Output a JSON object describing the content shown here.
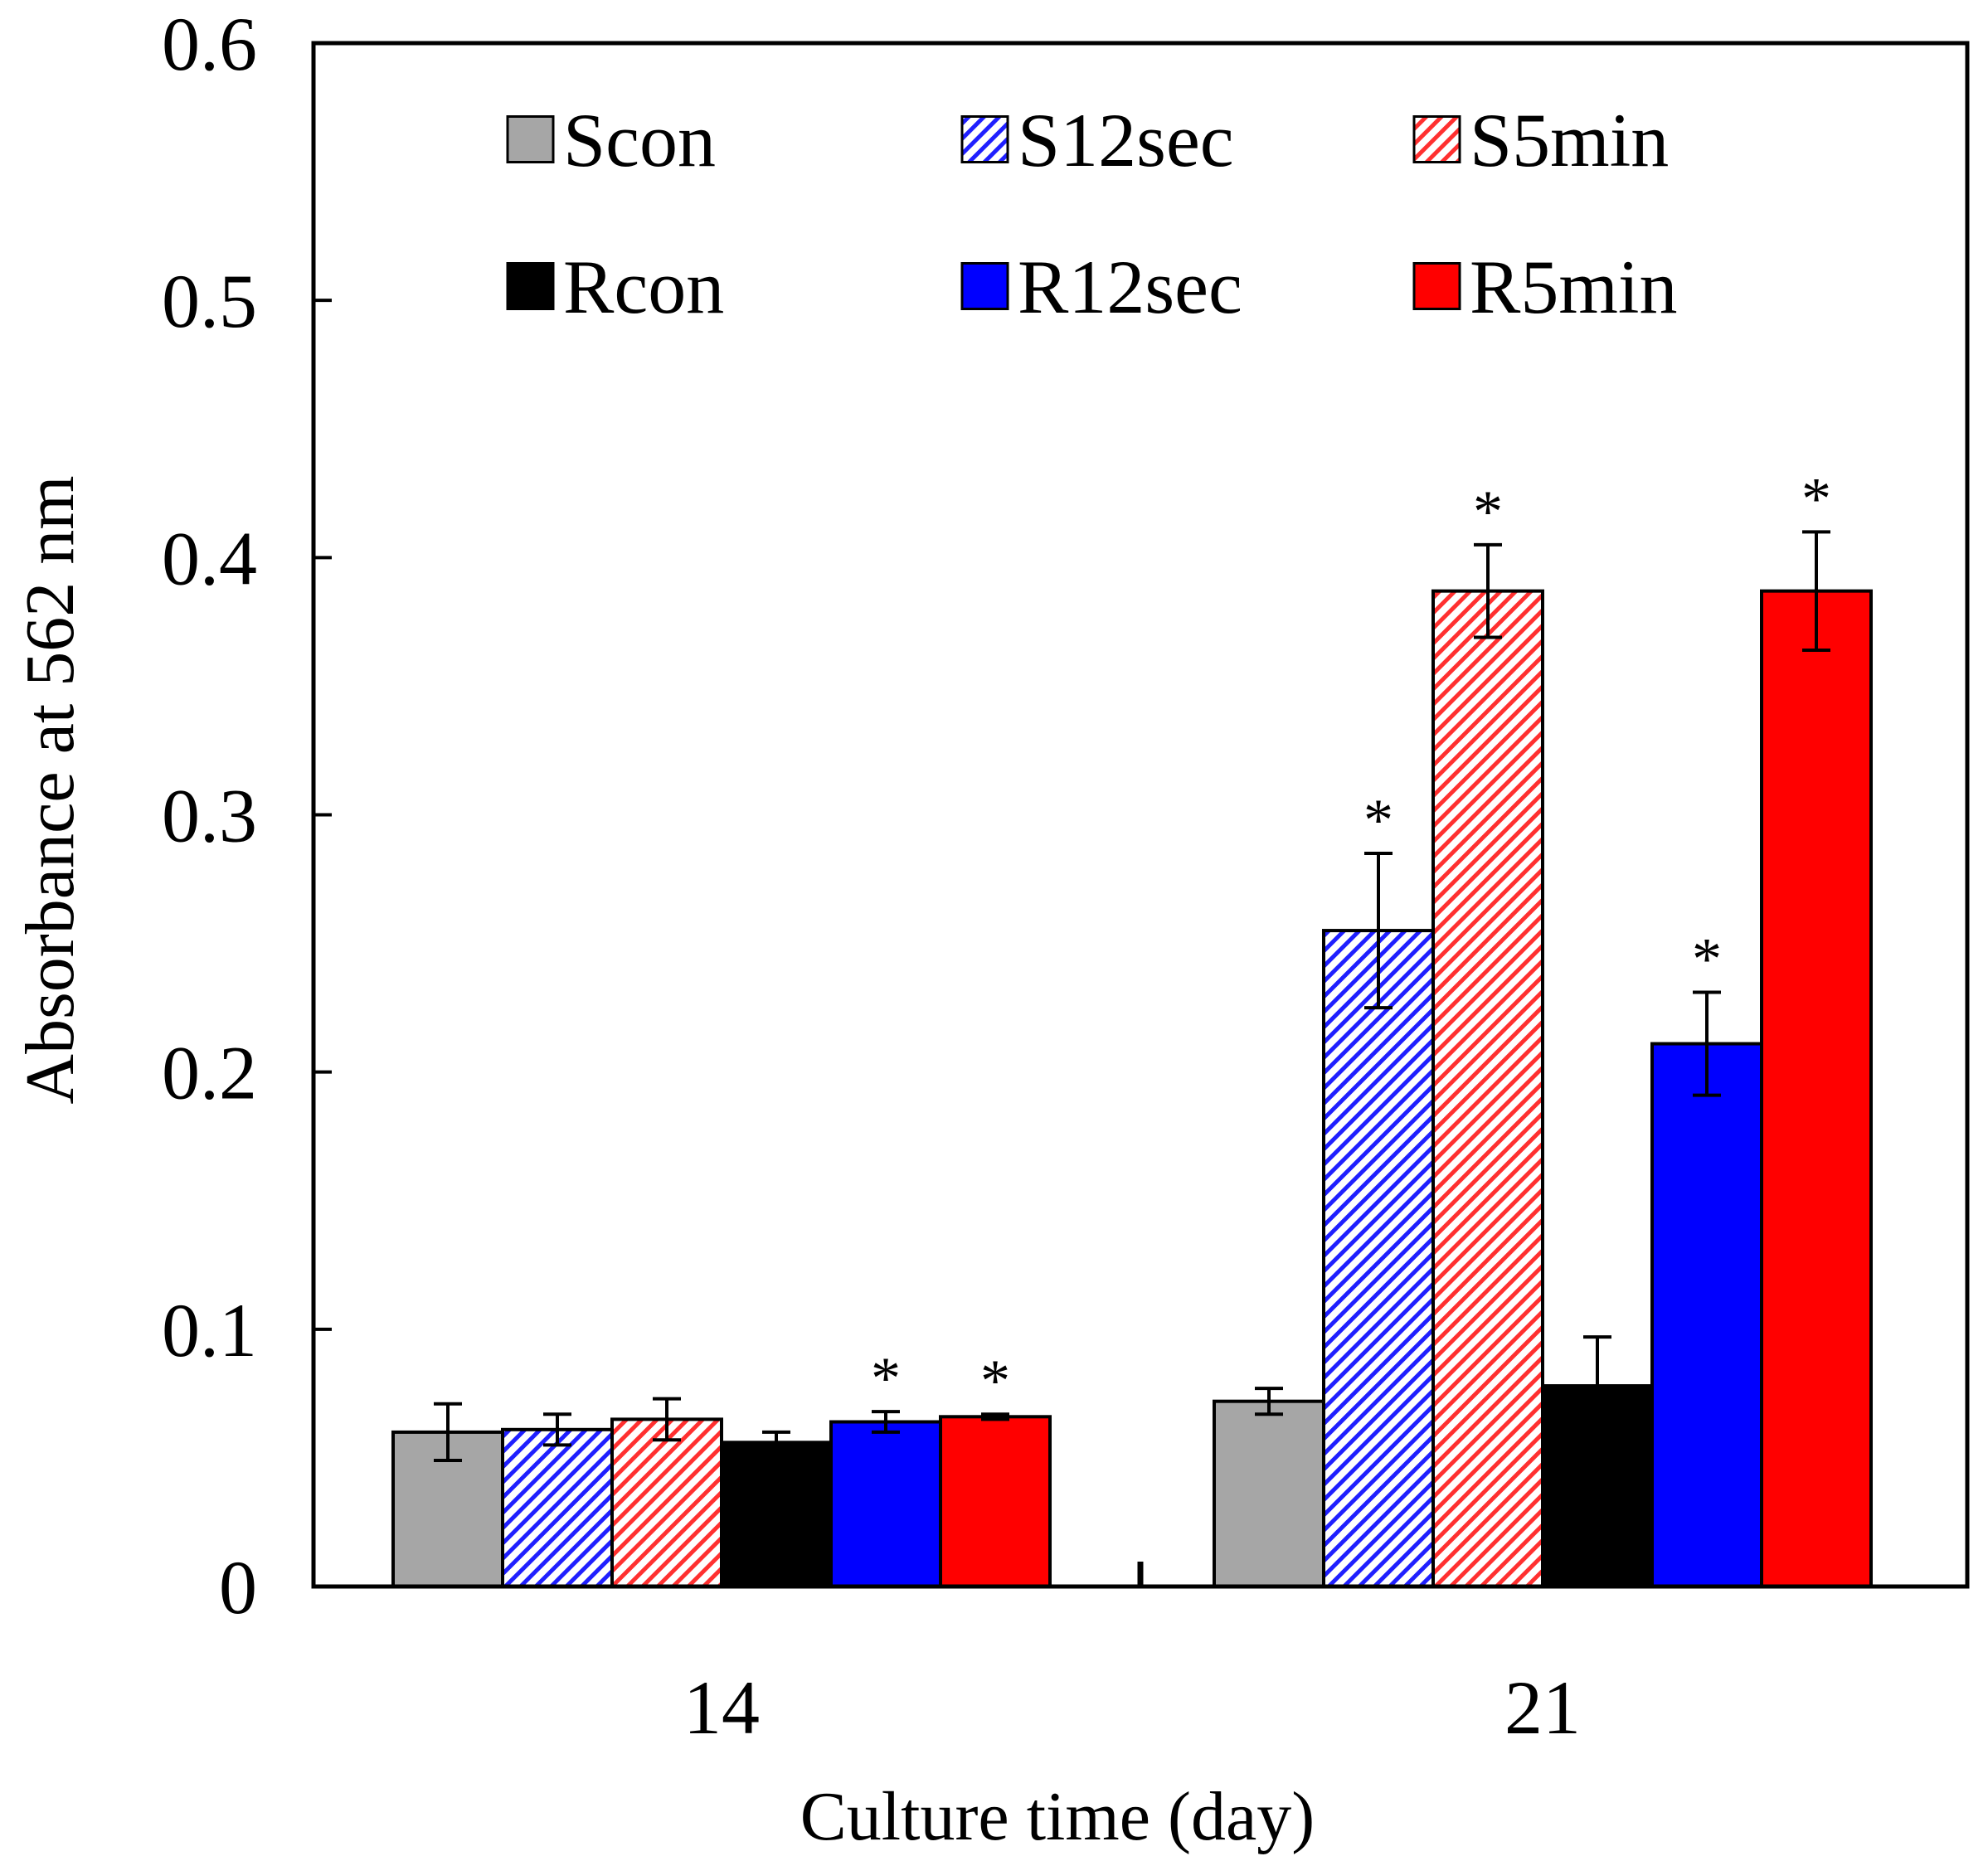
{
  "chart_data": {
    "type": "bar",
    "title": "",
    "xlabel": "Culture time (day)",
    "ylabel": "Absorbance at 562 nm",
    "ylim": [
      0,
      0.6
    ],
    "yticks": [
      0,
      0.1,
      0.2,
      0.3,
      0.4,
      0.5,
      0.6
    ],
    "ytick_labels": [
      "0",
      "0.1",
      "0.2",
      "0.3",
      "0.4",
      "0.5",
      "0.6"
    ],
    "categories": [
      "14",
      "21"
    ],
    "legend_position": "top",
    "significance_marker": "*",
    "series": [
      {
        "name": "Scon",
        "values": [
          0.06,
          0.072
        ],
        "errors": [
          0.011,
          0.005
        ],
        "significant": [
          false,
          false
        ],
        "color": "#a6a6a6",
        "pattern": "solid"
      },
      {
        "name": "S12sec",
        "values": [
          0.061,
          0.255
        ],
        "errors": [
          0.006,
          0.03
        ],
        "significant": [
          false,
          true
        ],
        "color": "#1f1fff",
        "pattern": "hatch"
      },
      {
        "name": "S5min",
        "values": [
          0.065,
          0.387
        ],
        "errors": [
          0.008,
          0.018
        ],
        "significant": [
          false,
          true
        ],
        "color": "#ff3030",
        "pattern": "hatch"
      },
      {
        "name": "Rcon",
        "values": [
          0.056,
          0.078
        ],
        "errors": [
          0.004,
          0.019
        ],
        "significant": [
          false,
          false
        ],
        "color": "#000000",
        "pattern": "solid"
      },
      {
        "name": "R12sec",
        "values": [
          0.064,
          0.211
        ],
        "errors": [
          0.004,
          0.02
        ],
        "significant": [
          true,
          true
        ],
        "color": "#0000ff",
        "pattern": "solid"
      },
      {
        "name": "R5min",
        "values": [
          0.066,
          0.387
        ],
        "errors": [
          0.001,
          0.023
        ],
        "significant": [
          true,
          true
        ],
        "color": "#ff0000",
        "pattern": "solid"
      }
    ]
  }
}
